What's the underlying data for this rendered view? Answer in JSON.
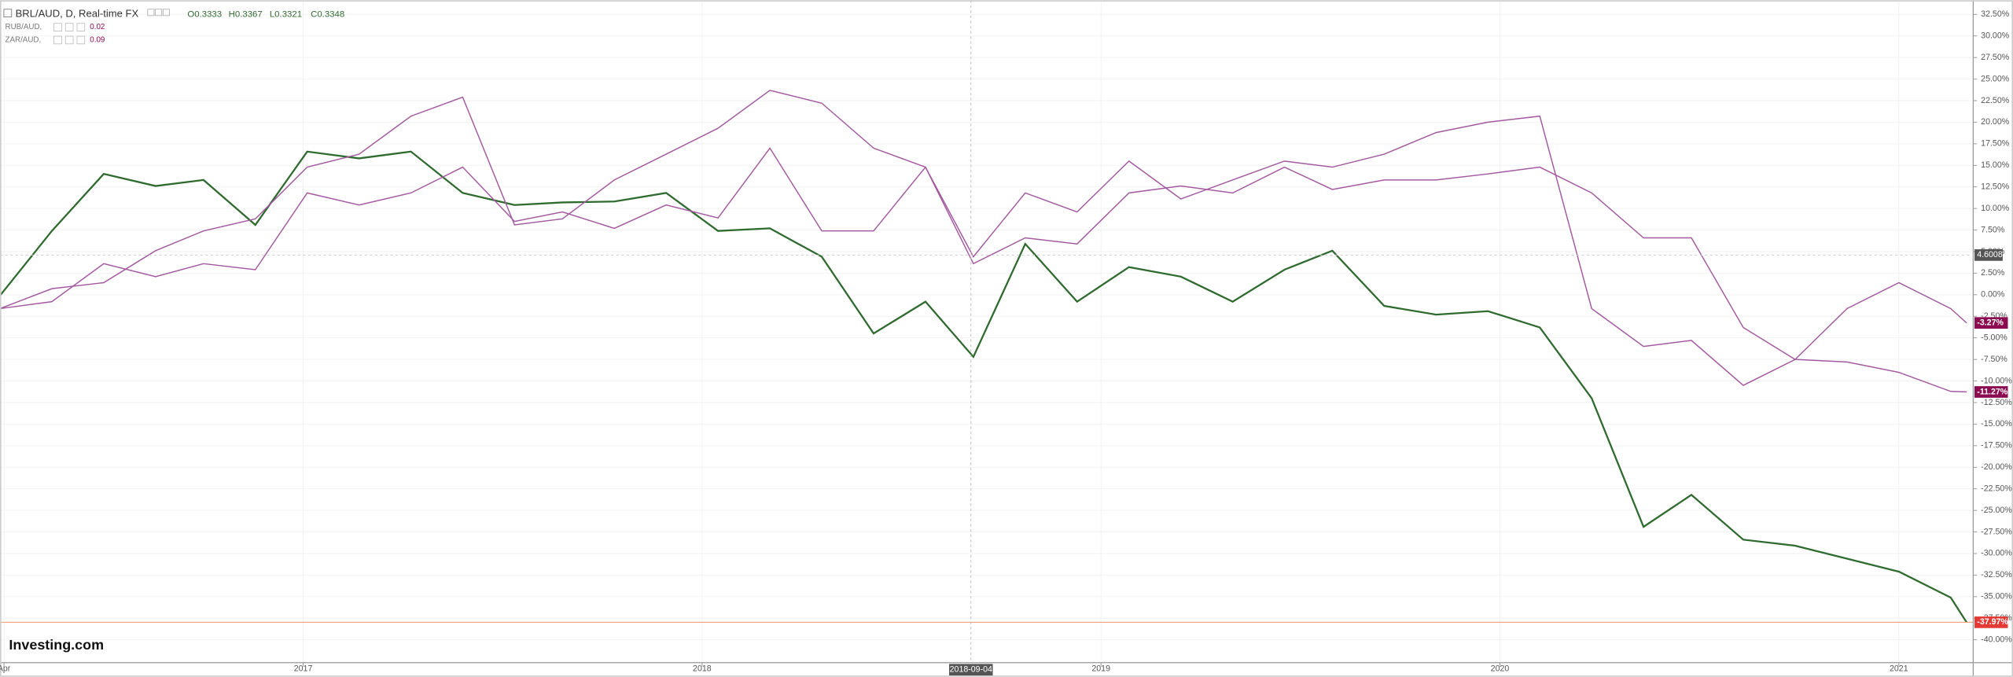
{
  "chart_data": {
    "type": "line",
    "header": {
      "symbol": "BRL/AUD, D, Real-time FX",
      "ohlc": [
        "O0.3333",
        "H0.3367",
        "L0.3321",
        "C0.3348"
      ]
    },
    "watermark": "Investing.com",
    "crosshair": {
      "x_label": "2018-09-04",
      "y_label": "4.6008"
    },
    "x": [
      2016.24,
      2016.37,
      2016.5,
      2016.63,
      2016.75,
      2016.88,
      2017.01,
      2017.14,
      2017.27,
      2017.4,
      2017.53,
      2017.65,
      2017.78,
      2017.91,
      2018.04,
      2018.17,
      2018.3,
      2018.43,
      2018.56,
      2018.68,
      2018.81,
      2018.94,
      2019.07,
      2019.2,
      2019.33,
      2019.46,
      2019.58,
      2019.71,
      2019.84,
      2019.97,
      2020.1,
      2020.23,
      2020.36,
      2020.48,
      2020.61,
      2020.74,
      2020.87,
      2021.0,
      2021.13,
      2021.17
    ],
    "series": [
      {
        "name": "BRL/AUD",
        "color": "#2f6b2f",
        "end_color": "#e53935",
        "end_label": "-37.97%",
        "values": [
          -0.1,
          7.4,
          14.0,
          12.6,
          13.3,
          8.1,
          16.6,
          15.8,
          16.6,
          11.8,
          10.4,
          10.7,
          10.8,
          11.8,
          7.4,
          7.7,
          4.4,
          -4.5,
          -0.8,
          -7.2,
          5.9,
          -0.8,
          3.2,
          2.1,
          -0.8,
          2.9,
          5.1,
          -1.3,
          -2.3,
          -1.9,
          -3.8,
          -12.0,
          -26.9,
          -23.2,
          -28.4,
          -29.1,
          -30.6,
          -32.1,
          -35.1,
          -37.97
        ]
      },
      {
        "name": "RUB/AUD,",
        "color": "#a35aa0",
        "end_color": "#8b0a50",
        "end_label": "-3.27%",
        "legend_value": "0.02",
        "values": [
          -1.6,
          0.7,
          1.4,
          5.1,
          7.4,
          8.8,
          14.8,
          16.3,
          20.7,
          22.9,
          8.1,
          8.8,
          13.3,
          16.3,
          19.3,
          23.7,
          22.2,
          17.0,
          14.8,
          4.4,
          11.8,
          9.6,
          15.5,
          11.1,
          13.3,
          15.5,
          14.8,
          16.3,
          18.8,
          20.0,
          20.7,
          -1.6,
          -6.0,
          -5.3,
          -10.5,
          -7.5,
          -1.6,
          1.4,
          -1.6,
          -3.27
        ]
      },
      {
        "name": "ZAR/AUD,",
        "color": "#a35aa0",
        "end_color": "#8b0a50",
        "end_label": "-11.27%",
        "legend_value": "0.09",
        "values": [
          -1.6,
          -0.8,
          3.6,
          2.1,
          3.6,
          2.9,
          11.8,
          10.4,
          11.8,
          14.8,
          8.5,
          9.6,
          7.7,
          10.4,
          8.9,
          17.0,
          7.4,
          7.4,
          14.8,
          3.6,
          6.6,
          5.9,
          11.8,
          12.6,
          11.8,
          14.8,
          12.2,
          13.3,
          13.3,
          14.0,
          14.8,
          11.8,
          6.6,
          6.6,
          -3.8,
          -7.5,
          -7.8,
          -9.0,
          -11.2,
          -11.27
        ]
      }
    ],
    "xlim": [
      2016.24,
      2021.18
    ],
    "xticks": [
      {
        "value": 2016.25,
        "label": "Apr"
      },
      2017,
      2018,
      2019,
      2020,
      2021
    ],
    "ylim": [
      -42.65,
      34.14
    ],
    "yticks": [
      {
        "value": 32.5,
        "label": "32.50%"
      },
      {
        "value": 30,
        "label": "30.00%"
      },
      {
        "value": 27.5,
        "label": "27.50%"
      },
      {
        "value": 25,
        "label": "25.00%"
      },
      {
        "value": 22.5,
        "label": "22.50%"
      },
      {
        "value": 20,
        "label": "20.00%"
      },
      {
        "value": 17.5,
        "label": "17.50%"
      },
      {
        "value": 15,
        "label": "15.00%"
      },
      {
        "value": 12.5,
        "label": "12.50%"
      },
      {
        "value": 10,
        "label": "10.00%"
      },
      {
        "value": 7.5,
        "label": "7.50%"
      },
      {
        "value": 5,
        "label": "5.00%"
      },
      {
        "value": 2.5,
        "label": "2.50%"
      },
      {
        "value": 0,
        "label": "0.00%"
      },
      {
        "value": -2.5,
        "label": "-2.50%"
      },
      {
        "value": -5,
        "label": "-5.00%"
      },
      {
        "value": -7.5,
        "label": "-7.50%"
      },
      {
        "value": -10,
        "label": "-10.00%"
      },
      {
        "value": -12.5,
        "label": "-12.50%"
      },
      {
        "value": -15,
        "label": "-15.00%"
      },
      {
        "value": -17.5,
        "label": "-17.50%"
      },
      {
        "value": -20,
        "label": "-20.00%"
      },
      {
        "value": -22.5,
        "label": "-22.50%"
      },
      {
        "value": -25,
        "label": "-25.00%"
      },
      {
        "value": -27.5,
        "label": "-27.50%"
      },
      {
        "value": -30,
        "label": "-30.00%"
      },
      {
        "value": -32.5,
        "label": "-32.50%"
      },
      {
        "value": -35,
        "label": "-35.00%"
      },
      {
        "value": -37.5,
        "label": "-37.50%"
      },
      {
        "value": -40,
        "label": "-40.00%"
      }
    ],
    "grid": true
  }
}
